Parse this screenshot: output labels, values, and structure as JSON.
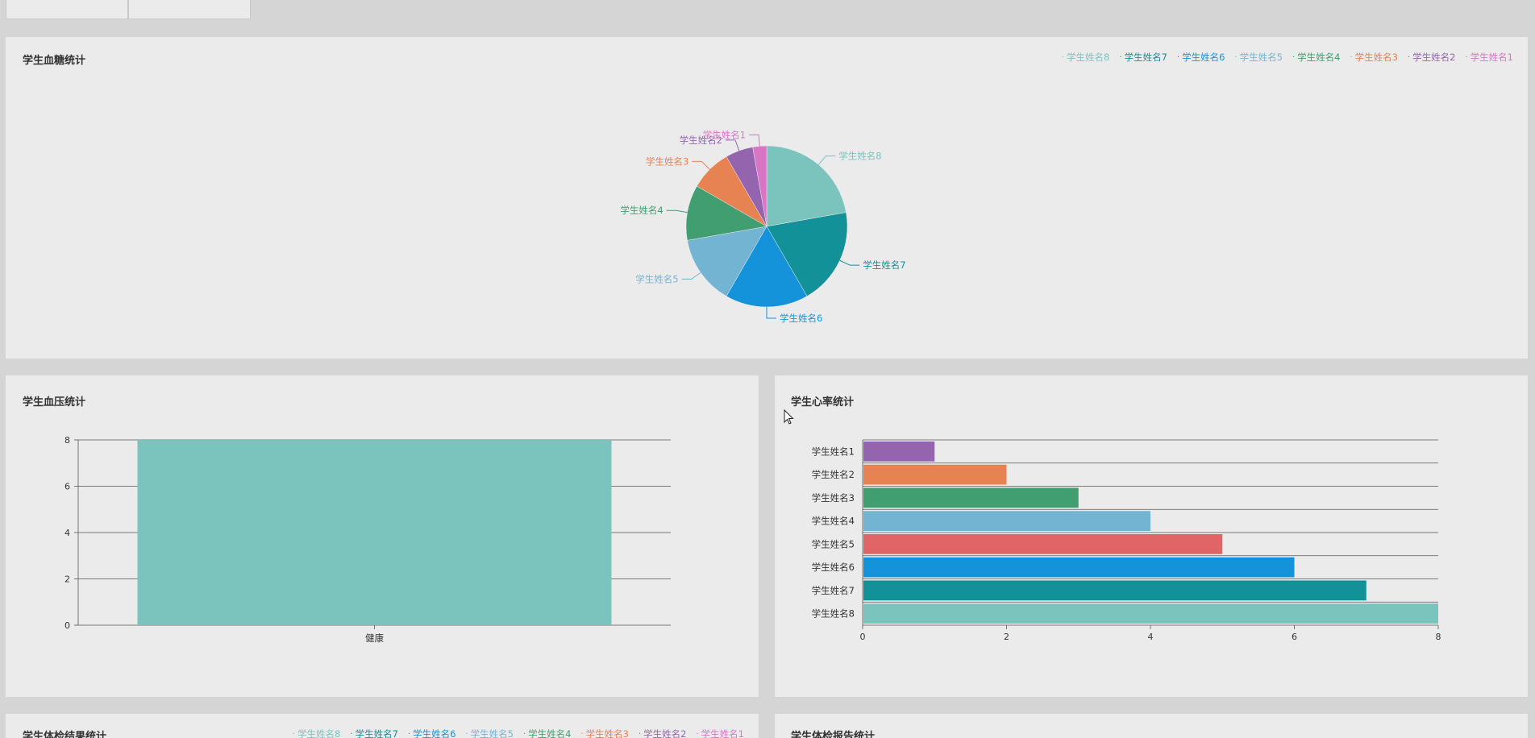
{
  "colors": {
    "s8": "#7bc3bd",
    "s7": "#129198",
    "s6": "#1593da",
    "s5": "#73b4d3",
    "s4": "#419e70",
    "s3": "#e78353",
    "s2": "#9464ae",
    "s1": "#d975c5",
    "red": "#e06566"
  },
  "panels": {
    "sugar": {
      "title": "学生血糖统计"
    },
    "pressure": {
      "title": "学生血压统计"
    },
    "heart": {
      "title": "学生心率统计"
    },
    "exam": {
      "title": "学生体检结果统计"
    },
    "bottom_right": {
      "title": "学生体检报告统计"
    }
  },
  "legend": [
    "学生姓名8",
    "学生姓名7",
    "学生姓名6",
    "学生姓名5",
    "学生姓名4",
    "学生姓名3",
    "学生姓名2",
    "学生姓名1"
  ],
  "chart_data": [
    {
      "type": "pie",
      "title": "学生血糖统计",
      "categories": [
        "学生姓名8",
        "学生姓名7",
        "学生姓名6",
        "学生姓名5",
        "学生姓名4",
        "学生姓名3",
        "学生姓名2",
        "学生姓名1"
      ],
      "values": [
        8,
        7,
        6,
        5,
        4,
        3,
        2,
        1
      ],
      "legend_position": "top-right"
    },
    {
      "type": "bar",
      "title": "学生血压统计",
      "categories": [
        "健康"
      ],
      "values": [
        8
      ],
      "ylim": [
        0,
        8
      ],
      "yticks": [
        "0",
        "2",
        "4",
        "6",
        "8"
      ]
    },
    {
      "type": "bar",
      "orientation": "horizontal",
      "title": "学生心率统计",
      "categories": [
        "学生姓名1",
        "学生姓名2",
        "学生姓名3",
        "学生姓名4",
        "学生姓名5",
        "学生姓名6",
        "学生姓名7",
        "学生姓名8"
      ],
      "values": [
        1,
        2,
        3,
        4,
        5,
        6,
        7,
        8
      ],
      "xlim": [
        0,
        8
      ],
      "xticks": [
        "0",
        "2",
        "4",
        "6",
        "8"
      ]
    }
  ]
}
